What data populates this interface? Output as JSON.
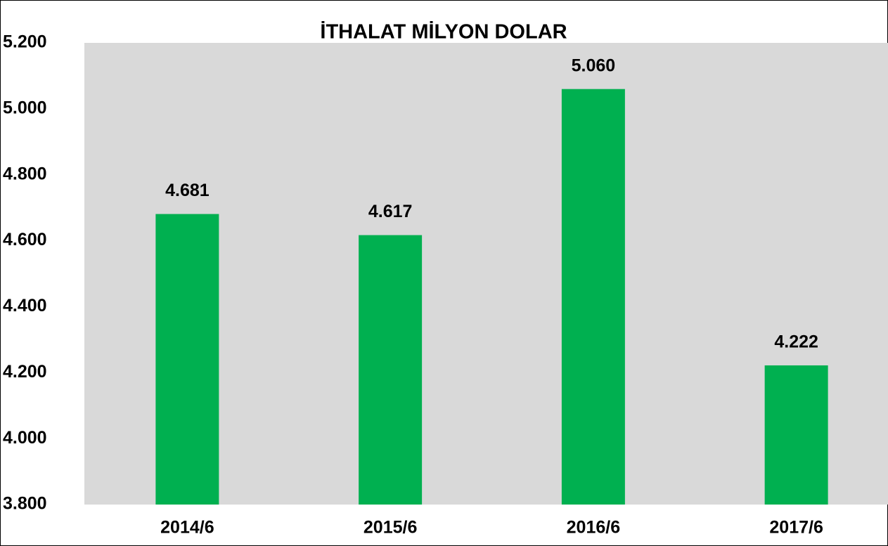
{
  "chart_data": {
    "type": "bar",
    "title": "İTHALAT MİLYON DOLAR",
    "categories": [
      "2014/6",
      "2015/6",
      "2016/6",
      "2017/6"
    ],
    "values": [
      4681,
      4617,
      5060,
      4222
    ],
    "value_labels": [
      "4.681",
      "4.617",
      "5.060",
      "4.222"
    ],
    "color": "#00b050",
    "ylim": [
      3800,
      5200
    ],
    "yticks": [
      {
        "value": 3800,
        "label": "3.800"
      },
      {
        "value": 4000,
        "label": "4.000"
      },
      {
        "value": 4200,
        "label": "4.200"
      },
      {
        "value": 4400,
        "label": "4.400"
      },
      {
        "value": 4600,
        "label": "4.600"
      },
      {
        "value": 4800,
        "label": "4.800"
      },
      {
        "value": 5000,
        "label": "5.000"
      },
      {
        "value": 5200,
        "label": "5.200"
      }
    ],
    "grid": false
  }
}
